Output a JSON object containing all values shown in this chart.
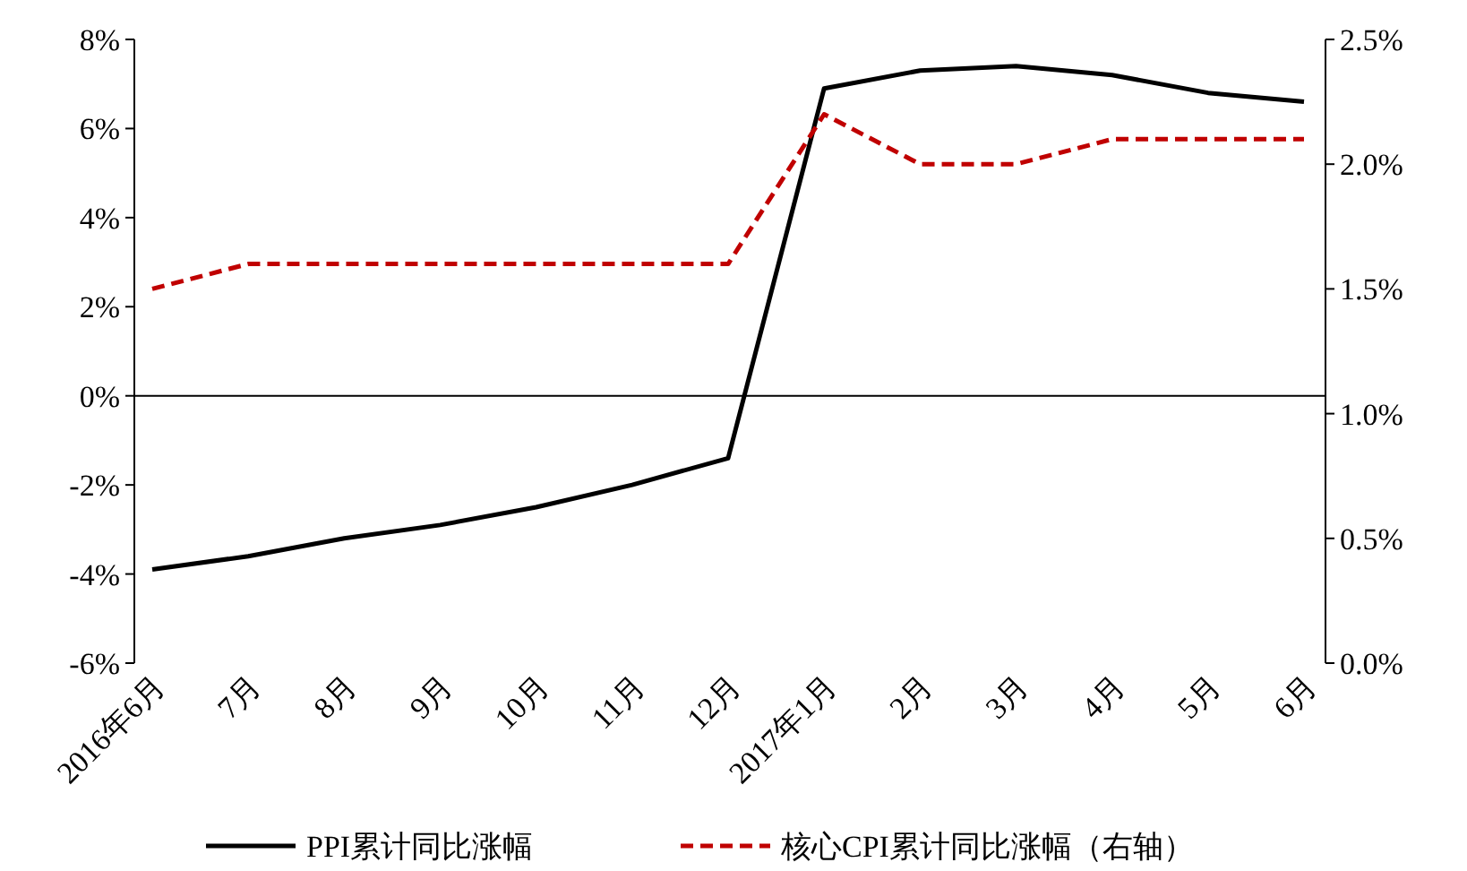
{
  "chart_data": {
    "type": "line",
    "categories": [
      "2016年6月",
      "7月",
      "8月",
      "9月",
      "10月",
      "11月",
      "12月",
      "2017年1月",
      "2月",
      "3月",
      "4月",
      "5月",
      "6月"
    ],
    "series": [
      {
        "name": "PPI累计同比涨幅",
        "color": "#000000",
        "line_style": "solid",
        "values": [
          -3.9,
          -3.6,
          -3.2,
          -2.9,
          -2.5,
          -2.0,
          -1.4,
          6.9,
          7.3,
          7.4,
          7.2,
          6.8,
          6.6
        ]
      },
      {
        "name": "核心CPI累计同比涨幅（右轴）",
        "color": "#c00000",
        "line_style": "dashed",
        "axis": "y2",
        "values": [
          1.5,
          1.6,
          1.6,
          1.6,
          1.6,
          1.6,
          1.6,
          2.2,
          2.0,
          2.0,
          2.1,
          2.1,
          2.1
        ]
      }
    ],
    "ylim": [
      -6,
      8
    ],
    "yticks": [
      {
        "value": -6,
        "label": "-6%"
      },
      {
        "value": -4,
        "label": "-4%"
      },
      {
        "value": -2,
        "label": "-2%"
      },
      {
        "value": 0,
        "label": "0%"
      },
      {
        "value": 2,
        "label": "2%"
      },
      {
        "value": 4,
        "label": "4%"
      },
      {
        "value": 6,
        "label": "6%"
      },
      {
        "value": 8,
        "label": "8%"
      }
    ],
    "y2lim": [
      0,
      2.5
    ],
    "y2ticks": [
      {
        "value": 0,
        "label": "0.0%"
      },
      {
        "value": 0.5,
        "label": "0.5%"
      },
      {
        "value": 1,
        "label": "1.0%"
      },
      {
        "value": 1.5,
        "label": "1.5%"
      },
      {
        "value": 2,
        "label": "2.0%"
      },
      {
        "value": 2.5,
        "label": "2.5%"
      }
    ],
    "legend": "bottom",
    "marker": "none"
  }
}
